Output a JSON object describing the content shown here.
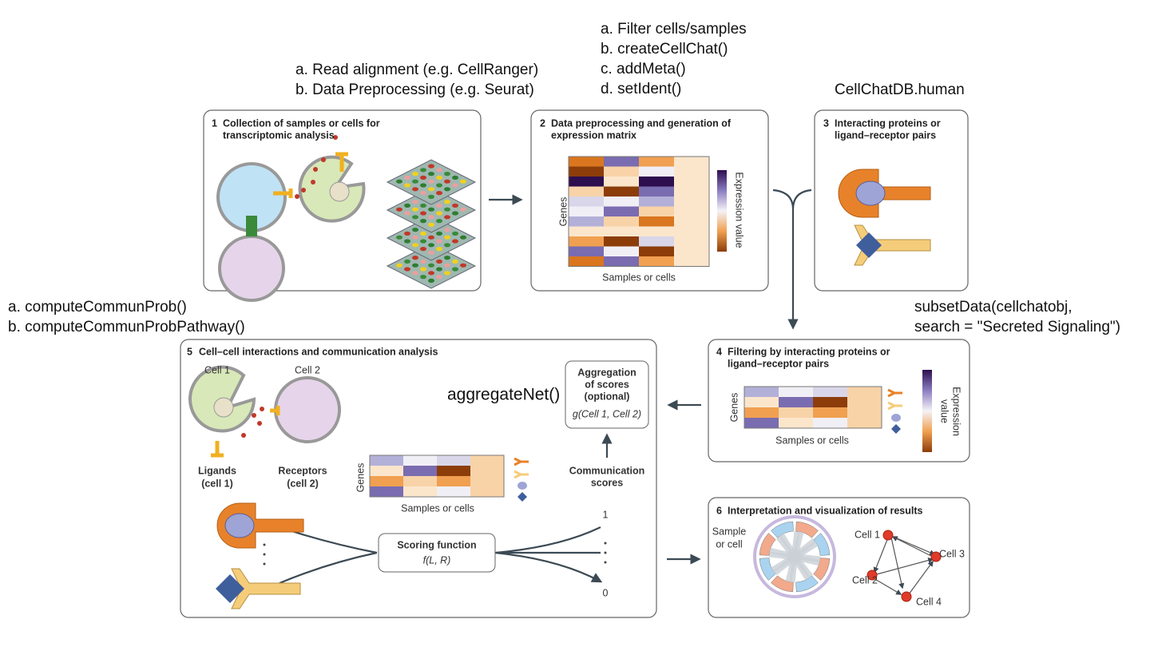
{
  "annotations": {
    "read_alignment": [
      "a. Read alignment (e.g. CellRanger)",
      "b. Data Preprocessing (e.g. Seurat)"
    ],
    "cellchat_setup": [
      "a. Filter cells/samples",
      "b. createCellChat()",
      "c. addMeta()",
      "d. setIdent()"
    ],
    "database": "CellChatDB.human",
    "communication": [
      "a. computeCommunProb()",
      "b. computeCommunProbPathway()"
    ],
    "subset": [
      "subsetData(cellchatobj,",
      "search = \"Secreted Signaling\")"
    ],
    "aggregate": "aggregateNet()"
  },
  "panels": [
    {
      "number": "1",
      "title": [
        "Collection of samples or cells for",
        "transcriptomic analysis"
      ]
    },
    {
      "number": "2",
      "title": [
        "Data preprocessing and generation of",
        "expression matrix"
      ],
      "y_label": "Genes",
      "x_label": "Samples or cells",
      "scale_label": "Expression value"
    },
    {
      "number": "3",
      "title": [
        "Interacting proteins or",
        "ligand–receptor pairs"
      ]
    },
    {
      "number": "4",
      "title": [
        "Filtering by interacting proteins or",
        "ligand–receptor pairs"
      ],
      "y_label": "Genes",
      "x_label": "Samples or cells",
      "scale_label": [
        "Expression",
        "value"
      ]
    },
    {
      "number": "5",
      "title": [
        "Cell–cell interactions and communication analysis"
      ],
      "cells": [
        "Cell 1",
        "Cell 2"
      ],
      "ligands": [
        "Ligands",
        "(cell 1)"
      ],
      "receptors": [
        "Receptors",
        "(cell 2)"
      ],
      "y_label": "Genes",
      "x_label": "Samples or cells",
      "scoring": [
        "Scoring function",
        "f(L, R)"
      ],
      "scores": [
        "Communication",
        "scores"
      ],
      "aggregation": [
        "Aggregation",
        "of scores",
        "(optional)",
        "g(Cell 1, Cell 2)"
      ],
      "range": [
        "1",
        "0"
      ]
    },
    {
      "number": "6",
      "title": [
        "Interpretation and visualization of results"
      ],
      "sample": [
        "Sample",
        "or cell"
      ],
      "cells": [
        "Cell 1",
        "Cell 2",
        "Cell 3",
        "Cell 4"
      ]
    }
  ]
}
